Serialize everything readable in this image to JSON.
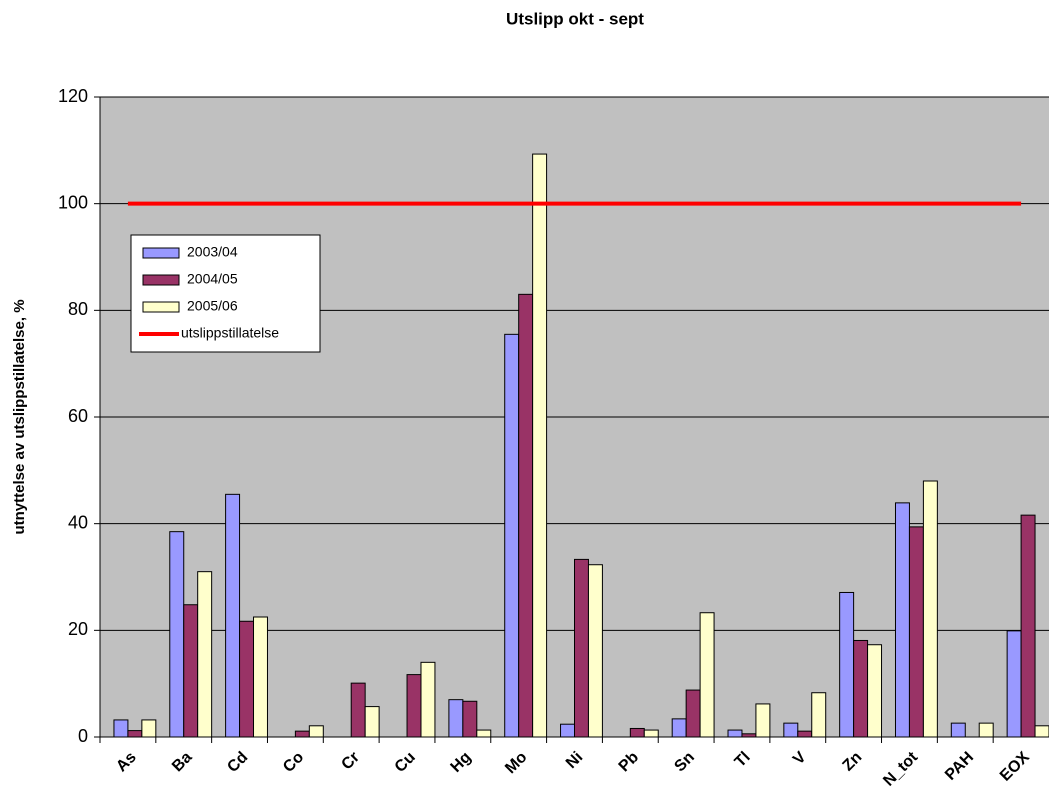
{
  "chart_data": {
    "type": "bar",
    "title": "Utslipp okt - sept",
    "y_label": "utnyttelse av utslippstillatelse, %",
    "categories": [
      "As",
      "Ba",
      "Cd",
      "Co",
      "Cr",
      "Cu",
      "Hg",
      "Mo",
      "Ni",
      "Pb",
      "Sn",
      "Tl",
      "V",
      "Zn",
      "N_tot",
      "PAH",
      "EOX"
    ],
    "series": [
      {
        "name": "2003/04",
        "color": "#9999ff",
        "values": [
          3.2,
          38.5,
          45.5,
          null,
          null,
          null,
          7,
          75.5,
          2.4,
          null,
          3.4,
          1.3,
          2.6,
          27.1,
          43.9,
          2.6,
          19.9
        ]
      },
      {
        "name": "2004/05",
        "color": "#993366",
        "values": [
          1.2,
          24.8,
          21.7,
          1.1,
          10.1,
          11.7,
          6.7,
          83,
          33.3,
          1.6,
          8.8,
          0.6,
          1.1,
          18.1,
          39.4,
          null,
          41.6
        ]
      },
      {
        "name": "2005/06",
        "color": "#ffffcc",
        "values": [
          3.2,
          31,
          22.5,
          2.1,
          5.7,
          14,
          1.3,
          109.3,
          32.3,
          1.3,
          23.3,
          6.2,
          8.3,
          17.3,
          48,
          2.6,
          2.1
        ]
      },
      {
        "name": "utslippstillatelse",
        "type": "line",
        "color": "#ff0000",
        "values": [
          100,
          100,
          100,
          100,
          100,
          100,
          100,
          100,
          100,
          100,
          100,
          100,
          100,
          100,
          100,
          100,
          100
        ]
      }
    ],
    "ylim": [
      0,
      120
    ],
    "yticks": [
      0,
      20,
      40,
      60,
      80,
      100,
      120
    ],
    "grid": true,
    "legend": "left"
  }
}
